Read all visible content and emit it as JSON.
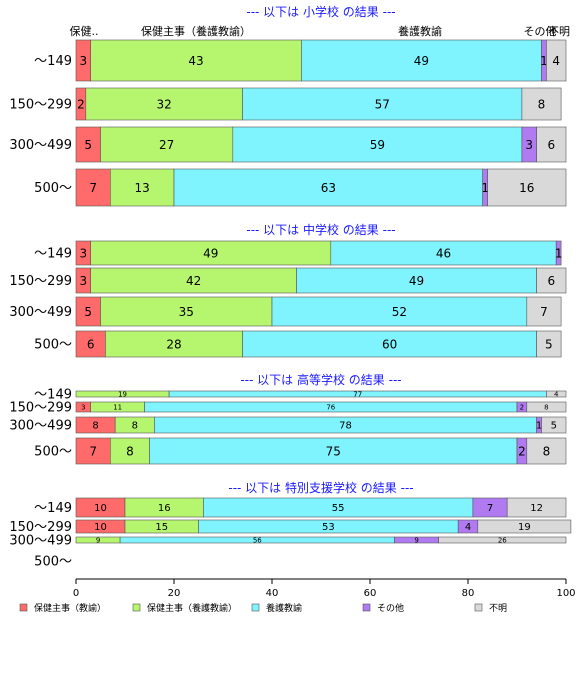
{
  "colors": {
    "保健主事（教諭）": "#ff6b6b",
    "保健主事（養護教諭）": "#b6f56e",
    "養護教諭": "#7ff4ff",
    "その他": "#b07af0",
    "不明": "#d9d9d9"
  },
  "chart_data": {
    "type": "bar",
    "orientation": "horizontal-stacked-100",
    "xlim": [
      0,
      100
    ],
    "xticks": [
      "0",
      "20",
      "40",
      "60",
      "80",
      "100"
    ],
    "series_names": [
      "保健主事（教諭）",
      "保健主事（養護教諭）",
      "養護教諭",
      "その他",
      "不明"
    ],
    "top_labels": [
      "保健..",
      "保健主事（養護教諭）",
      "養護教諭",
      "その他",
      "不明"
    ],
    "sections": [
      {
        "title": "--- 以下は 小学校 の結果 ---",
        "rows": [
          {
            "label": "〜149",
            "values": [
              3,
              43,
              49,
              1,
              4
            ]
          },
          {
            "label": "150〜299",
            "values": [
              2,
              32,
              57,
              0,
              8
            ]
          },
          {
            "label": "300〜499",
            "values": [
              5,
              27,
              59,
              3,
              6
            ]
          },
          {
            "label": "500〜",
            "values": [
              7,
              13,
              63,
              1,
              16
            ]
          }
        ]
      },
      {
        "title": "--- 以下は 中学校 の結果 ---",
        "rows": [
          {
            "label": "〜149",
            "values": [
              3,
              49,
              46,
              1,
              0
            ]
          },
          {
            "label": "150〜299",
            "values": [
              3,
              42,
              49,
              0,
              6
            ]
          },
          {
            "label": "300〜499",
            "values": [
              5,
              35,
              52,
              0,
              7
            ]
          },
          {
            "label": "500〜",
            "values": [
              6,
              28,
              60,
              0,
              5
            ]
          }
        ]
      },
      {
        "title": "--- 以下は 高等学校 の結果 ---",
        "rows": [
          {
            "label": "〜149",
            "values": [
              0,
              19,
              77,
              0,
              4
            ]
          },
          {
            "label": "150〜299",
            "values": [
              3,
              11,
              76,
              2,
              8
            ]
          },
          {
            "label": "300〜499",
            "values": [
              8,
              8,
              78,
              1,
              5
            ]
          },
          {
            "label": "500〜",
            "values": [
              7,
              8,
              75,
              2,
              8
            ]
          }
        ]
      },
      {
        "title": "--- 以下は 特別支援学校 の結果 ---",
        "rows": [
          {
            "label": "〜149",
            "values": [
              10,
              16,
              55,
              7,
              12
            ]
          },
          {
            "label": "150〜299",
            "values": [
              10,
              15,
              53,
              4,
              19
            ]
          },
          {
            "label": "300〜499",
            "values": [
              0,
              9,
              56,
              9,
              26
            ]
          },
          {
            "label": "500〜",
            "values": []
          }
        ]
      }
    ],
    "legend": [
      "保健主事（教諭）",
      "保健主事（養護教諭）",
      "養護教諭",
      "その他",
      "不明"
    ],
    "legend_position": "bottom"
  }
}
